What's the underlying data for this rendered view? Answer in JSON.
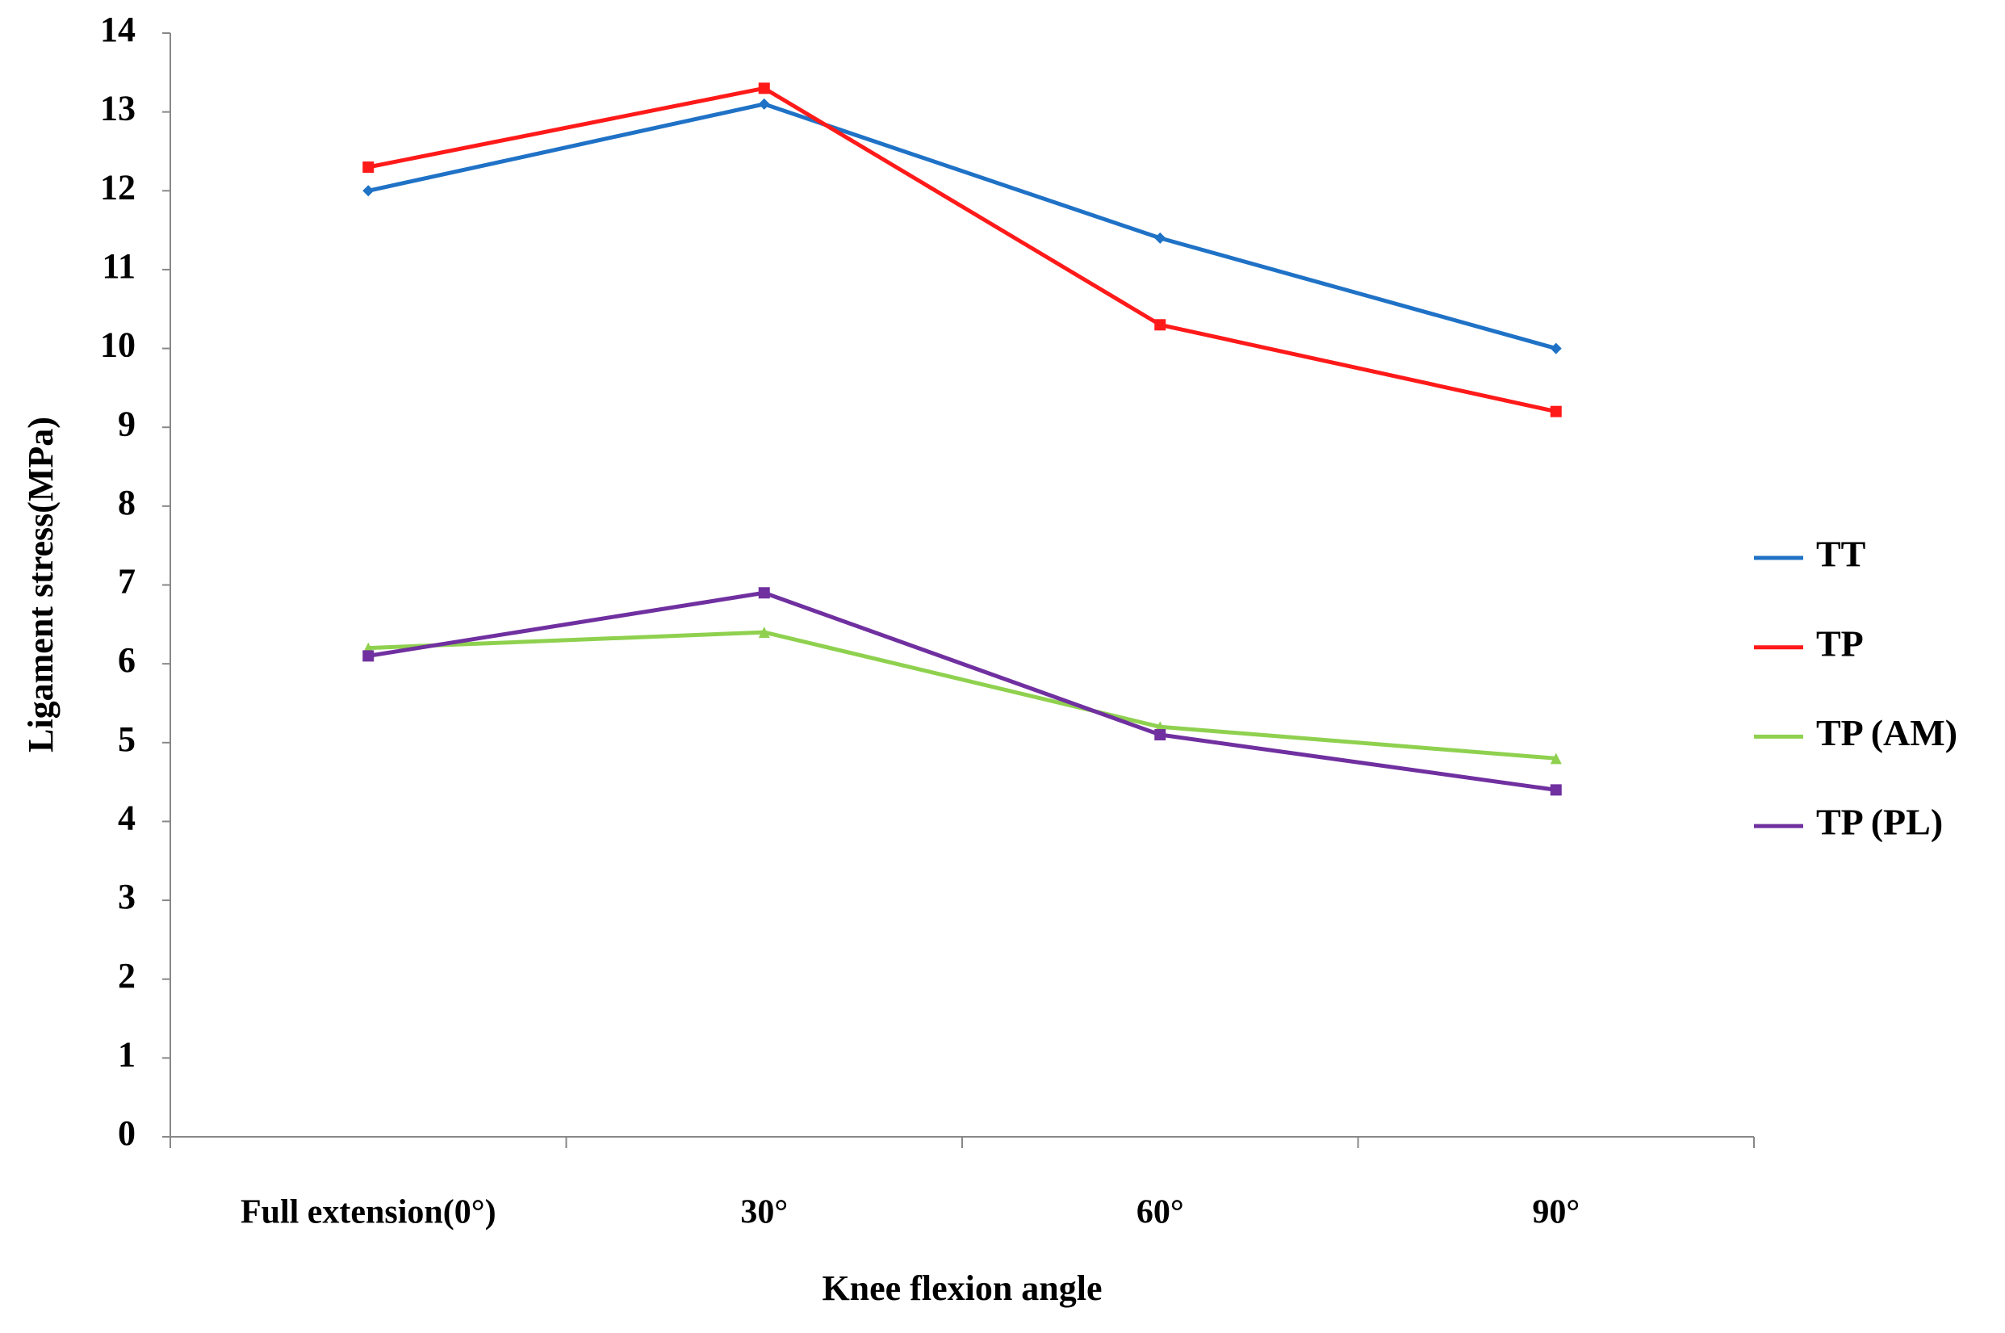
{
  "chart_data": {
    "type": "line",
    "x_label": "Knee flexion angle",
    "y_label": "Ligament stress(MPa)",
    "categories": [
      "Full extension(0°)",
      "30°",
      "60°",
      "90°"
    ],
    "series": [
      {
        "name": "TT",
        "color": "#1f72c6",
        "marker": "diamond",
        "values": [
          12,
          13.1,
          11.4,
          10
        ]
      },
      {
        "name": "TP",
        "color": "#ff1a1a",
        "marker": "square",
        "values": [
          12.3,
          13.3,
          10.3,
          9.2
        ]
      },
      {
        "name": "TP (AM)",
        "color": "#8fd14f",
        "marker": "triangle",
        "values": [
          6.2,
          6.4,
          5.2,
          4.8
        ]
      },
      {
        "name": "TP (PL)",
        "color": "#7030a0",
        "marker": "square",
        "values": [
          6.1,
          6.9,
          5.1,
          4.4
        ]
      }
    ],
    "ylim": [
      0,
      14
    ],
    "yticks": [
      0,
      1,
      2,
      3,
      4,
      5,
      6,
      7,
      8,
      9,
      10,
      11,
      12,
      13,
      14
    ],
    "grid": false,
    "legend": "right"
  }
}
